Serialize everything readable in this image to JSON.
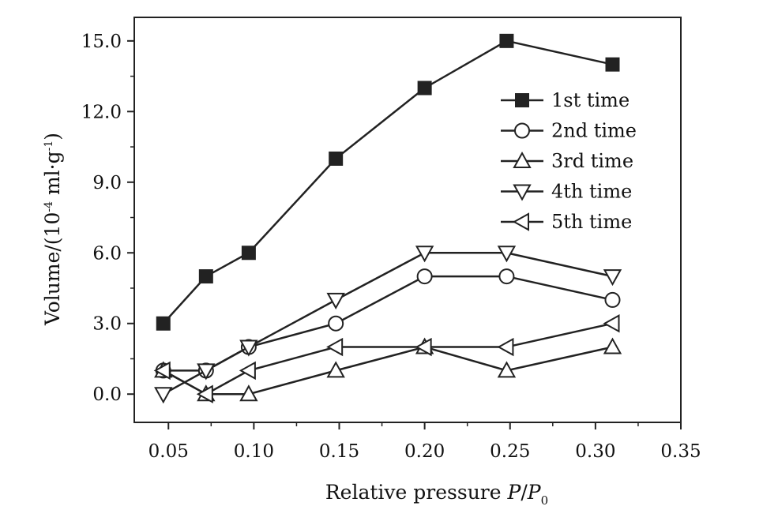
{
  "chart_data": {
    "type": "line",
    "title": "",
    "xlabel": {
      "prefix": "Relative pressure ",
      "var": "P",
      "slash": "/",
      "var2": "P",
      "sub": "0"
    },
    "ylabel": {
      "prefix": "Volume/(10",
      "sup1": "-4",
      "middle": " ml·g",
      "sup2": "-1",
      "suffix": ")"
    },
    "xlim": [
      0.03,
      0.35
    ],
    "ylim": [
      -1.2,
      16.0
    ],
    "x_ticks": [
      0.05,
      0.1,
      0.15,
      0.2,
      0.25,
      0.3,
      0.35
    ],
    "x_tick_labels": [
      "0.05",
      "0.10",
      "0.15",
      "0.20",
      "0.25",
      "0.30",
      "0.35"
    ],
    "y_ticks": [
      0.0,
      3.0,
      6.0,
      9.0,
      12.0,
      15.0
    ],
    "y_tick_labels": [
      "0.0",
      "3.0",
      "6.0",
      "9.0",
      "12.0",
      "15.0"
    ],
    "legend_position": "top-right",
    "grid": false,
    "x": [
      0.047,
      0.072,
      0.097,
      0.148,
      0.2,
      0.248,
      0.31
    ],
    "series": [
      {
        "name": "1st time",
        "marker": "square-filled",
        "values": [
          3,
          5,
          6,
          10,
          13,
          15,
          14
        ]
      },
      {
        "name": "2nd time",
        "marker": "circle-open",
        "values": [
          1,
          1,
          2,
          3,
          5,
          5,
          4
        ]
      },
      {
        "name": "3rd time",
        "marker": "triangle-up-open",
        "values": [
          1,
          0,
          0,
          1,
          2,
          1,
          2
        ]
      },
      {
        "name": "4th time",
        "marker": "triangle-down-open",
        "values": [
          0,
          1,
          2,
          4,
          6,
          6,
          5
        ]
      },
      {
        "name": "5th time",
        "marker": "triangle-left-open",
        "values": [
          1,
          0,
          1,
          2,
          2,
          2,
          3
        ]
      }
    ]
  }
}
